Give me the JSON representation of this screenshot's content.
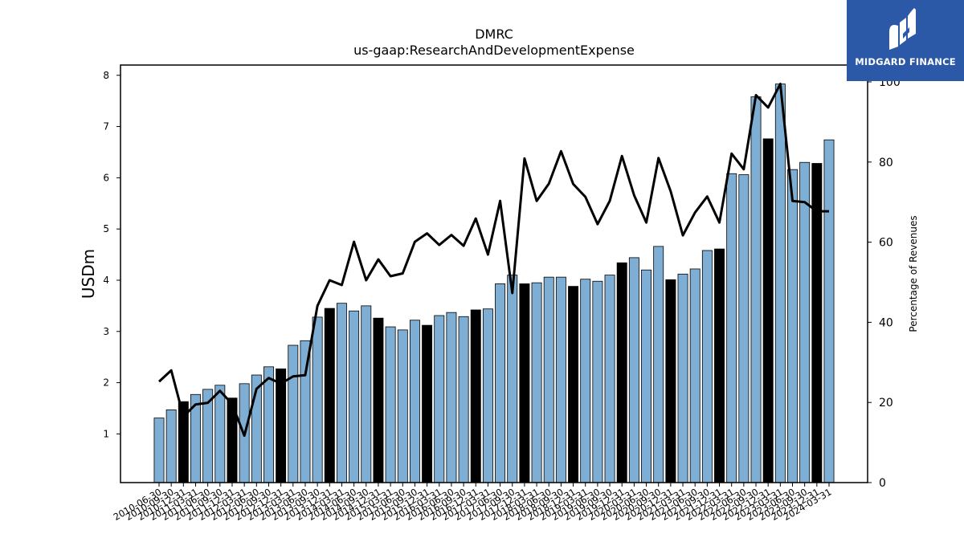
{
  "brand": {
    "name": "MIDGARD FINANCE",
    "background": "#2b59a8",
    "text_color": "#ffffff"
  },
  "chart_data": {
    "type": "bar",
    "title": "DMRC",
    "subtitle": "us-gaap:ResearchAndDevelopmentExpense",
    "ylabel": "USDm",
    "y2label": "Percentage of Revenues",
    "ylim": [
      0.05,
      8.2
    ],
    "y2lim": [
      0,
      100
    ],
    "yticks": [
      1,
      2,
      3,
      4,
      5,
      6,
      7,
      8
    ],
    "y2ticks": [
      0,
      20,
      40,
      60,
      80,
      100
    ],
    "grid": false,
    "bar_color_quarter": "#7eaed3",
    "bar_color_year_end": "#000000",
    "line_color": "#000000",
    "categories": [
      "2010-06-30",
      "2010-09-30",
      "2010-12-31",
      "2011-03-31",
      "2011-06-30",
      "2011-09-30",
      "2011-12-31",
      "2012-03-31",
      "2012-06-30",
      "2012-09-30",
      "2012-12-31",
      "2013-03-31",
      "2013-06-30",
      "2013-09-30",
      "2013-12-31",
      "2014-03-31",
      "2014-06-30",
      "2014-09-30",
      "2014-12-31",
      "2015-03-31",
      "2015-06-30",
      "2015-09-30",
      "2015-12-31",
      "2016-03-31",
      "2016-06-30",
      "2016-09-30",
      "2016-12-31",
      "2017-03-31",
      "2017-06-30",
      "2017-09-30",
      "2017-12-31",
      "2018-03-31",
      "2018-06-30",
      "2018-09-30",
      "2018-12-31",
      "2019-03-31",
      "2019-06-30",
      "2019-09-30",
      "2019-12-31",
      "2020-03-31",
      "2020-06-30",
      "2020-09-30",
      "2020-12-31",
      "2021-03-31",
      "2021-06-30",
      "2021-09-30",
      "2021-12-31",
      "2022-03-31",
      "2022-06-30",
      "2022-09-30",
      "2022-12-31",
      "2023-03-31",
      "2023-06-30",
      "2023-09-30",
      "2023-12-31",
      "2024-03-31"
    ],
    "series": [
      {
        "kind": "bar",
        "values": [
          1.31,
          1.47,
          1.63,
          1.77,
          1.87,
          1.95,
          1.7,
          1.98,
          2.15,
          2.31,
          2.27,
          2.73,
          2.82,
          3.28,
          3.45,
          3.55,
          3.4,
          3.5,
          3.26,
          3.09,
          3.03,
          3.22,
          3.12,
          3.31,
          3.37,
          3.29,
          3.42,
          3.44,
          3.93,
          4.1,
          3.93,
          3.95,
          4.06,
          4.06,
          3.88,
          4.02,
          3.98,
          4.1,
          4.34,
          4.44,
          4.2,
          4.66,
          4.01,
          4.12,
          4.22,
          4.58,
          4.61,
          6.08,
          6.06,
          7.58,
          6.76,
          7.83,
          6.16,
          6.3,
          6.28,
          6.74
        ],
        "year_end": [
          false,
          false,
          true,
          false,
          false,
          false,
          true,
          false,
          false,
          false,
          true,
          false,
          false,
          false,
          true,
          false,
          false,
          false,
          true,
          false,
          false,
          false,
          true,
          false,
          false,
          false,
          true,
          false,
          false,
          false,
          true,
          false,
          false,
          false,
          true,
          false,
          false,
          false,
          true,
          false,
          false,
          false,
          true,
          false,
          false,
          false,
          true,
          false,
          false,
          false,
          true,
          false,
          false,
          false,
          true,
          false
        ]
      },
      {
        "kind": "line",
        "axis": "right",
        "values": [
          25.2,
          28.0,
          16.5,
          19.5,
          19.9,
          22.9,
          19.6,
          11.7,
          23.4,
          26.1,
          24.7,
          26.5,
          26.8,
          44.1,
          50.5,
          49.3,
          60.1,
          50.5,
          55.7,
          51.5,
          52.2,
          60.1,
          62.2,
          59.3,
          61.8,
          59.1,
          65.9,
          56.9,
          70.3,
          47.3,
          80.9,
          70.3,
          74.6,
          82.7,
          74.5,
          71.3,
          64.5,
          70.3,
          81.5,
          71.7,
          64.9,
          81.0,
          72.7,
          61.7,
          67.4,
          71.4,
          64.9,
          82.1,
          78.2,
          96.7,
          93.6,
          99.5,
          70.3,
          70.0,
          67.7,
          67.7
        ]
      }
    ],
    "tick_labels_shown": [
      "2010-06-30",
      "2010-09-30",
      "2010-12-31",
      "2011-03-31",
      "2011-06-30",
      "2011-09-30",
      "2011-12-31",
      "2012-03-31",
      "2012-06-30",
      "2012-09-30",
      "2012-12-31",
      "2013-03-31",
      "2013-06-30",
      "2013-09-30",
      "2013-12-31",
      "2014-03-31",
      "2014-06-30",
      "2014-09-30",
      "2014-12-31",
      "2015-03-31",
      "2015-06-30",
      "2015-09-30",
      "2015-12-31",
      "2016-03-31",
      "2016-06-30",
      "2016-09-30",
      "2016-12-31",
      "2017-03-31",
      "2017-06-30",
      "2017-09-30",
      "2017-12-31",
      "2018-03-31",
      "2018-06-30",
      "2018-09-30",
      "2018-12-31",
      "2019-03-31",
      "2019-06-30",
      "2019-09-30",
      "2019-12-31",
      "2020-03-31",
      "2020-06-30",
      "2020-09-30",
      "2020-12-31",
      "2021-03-31",
      "2021-06-30",
      "2021-09-30",
      "2021-12-31",
      "2022-03-31",
      "2022-06-30",
      "2022-09-30",
      "2022-12-31",
      "2023-03-31",
      "2023-06-30",
      "2023-09-30",
      "2023-12-31",
      "2024-03-31"
    ]
  }
}
